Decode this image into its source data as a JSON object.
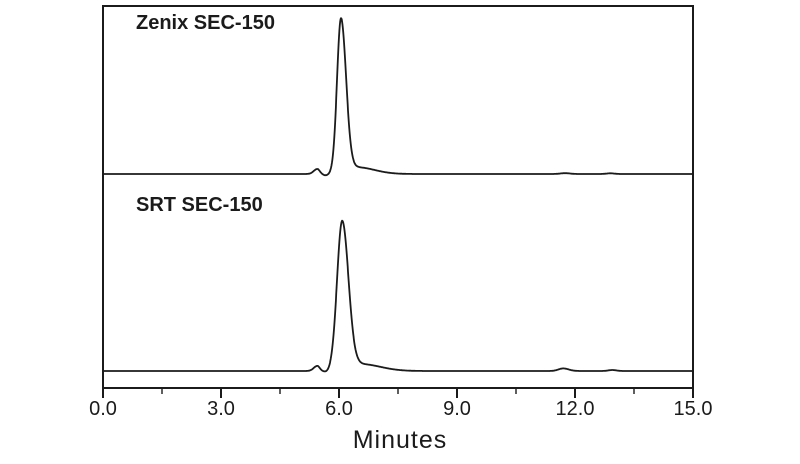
{
  "chart_data": {
    "type": "line",
    "subtype": "size-exclusion chromatography chromatograms, two stacked panels sharing one x-axis",
    "title": "",
    "xlabel": "Minutes",
    "ylabel": "",
    "y_axis": "detector response (unlabeled, relative units per panel)",
    "x_range": [
      0.0,
      15.0
    ],
    "x_major_ticks": [
      0.0,
      3.0,
      6.0,
      9.0,
      12.0,
      15.0
    ],
    "x_tick_labels": [
      "0.0",
      "3.0",
      "6.0",
      "9.0",
      "12.0",
      "15.0"
    ],
    "x_minor_ticks": [
      1.5,
      4.5,
      7.5,
      10.5,
      13.5
    ],
    "grid": "off",
    "legend": "none (panel labels inside plot area)",
    "line_color": "#1b1b1b",
    "background": "#ffffff",
    "panels": [
      {
        "label": "Zenix SEC-150",
        "main_peak_retention_min": 6.05,
        "main_peak_relative_height": 0.92,
        "pre_peak_retention_min": 5.45,
        "peaks": [
          {
            "name": "pre-peak",
            "center": 5.45,
            "height": 0.03,
            "sigma_left": 0.09,
            "sigma_right": 0.06
          },
          {
            "name": "pre-dip",
            "center": 5.66,
            "height": -0.008,
            "sigma_left": 0.06,
            "sigma_right": 0.07
          },
          {
            "name": "main-peak",
            "center": 6.05,
            "height": 0.92,
            "sigma_left": 0.1,
            "sigma_right": 0.13
          },
          {
            "name": "tail",
            "center": 6.45,
            "height": 0.04,
            "sigma_left": 0.22,
            "sigma_right": 0.45
          },
          {
            "name": "late-ripple-1",
            "center": 11.75,
            "height": 0.005,
            "sigma_left": 0.12,
            "sigma_right": 0.12
          },
          {
            "name": "late-ripple-2",
            "center": 12.9,
            "height": 0.004,
            "sigma_left": 0.1,
            "sigma_right": 0.1
          }
        ],
        "key_points": [
          [
            0.0,
            0.0
          ],
          [
            5.2,
            0.002
          ],
          [
            5.45,
            0.03
          ],
          [
            5.66,
            -0.006
          ],
          [
            6.05,
            0.92
          ],
          [
            6.45,
            0.05
          ],
          [
            7.0,
            0.01
          ],
          [
            9.0,
            0.001
          ],
          [
            11.75,
            0.005
          ],
          [
            15.0,
            0.001
          ]
        ]
      },
      {
        "label": "SRT SEC-150",
        "main_peak_retention_min": 6.08,
        "main_peak_relative_height": 0.76,
        "pre_peak_retention_min": 5.45,
        "peaks": [
          {
            "name": "pre-peak",
            "center": 5.45,
            "height": 0.026,
            "sigma_left": 0.09,
            "sigma_right": 0.06
          },
          {
            "name": "pre-dip",
            "center": 5.68,
            "height": -0.006,
            "sigma_left": 0.06,
            "sigma_right": 0.07
          },
          {
            "name": "main-peak",
            "center": 6.08,
            "height": 0.757,
            "sigma_left": 0.13,
            "sigma_right": 0.16
          },
          {
            "name": "tail",
            "center": 6.55,
            "height": 0.035,
            "sigma_left": 0.25,
            "sigma_right": 0.5
          },
          {
            "name": "late-bump-1",
            "center": 11.7,
            "height": 0.013,
            "sigma_left": 0.12,
            "sigma_right": 0.14
          },
          {
            "name": "late-bump-2",
            "center": 12.95,
            "height": 0.005,
            "sigma_left": 0.1,
            "sigma_right": 0.1
          }
        ],
        "key_points": [
          [
            0.0,
            0.0
          ],
          [
            5.2,
            0.002
          ],
          [
            5.45,
            0.026
          ],
          [
            5.68,
            -0.005
          ],
          [
            6.08,
            0.757
          ],
          [
            6.55,
            0.04
          ],
          [
            7.2,
            0.008
          ],
          [
            9.0,
            0.001
          ],
          [
            11.7,
            0.013
          ],
          [
            12.95,
            0.005
          ],
          [
            15.0,
            0.001
          ]
        ]
      }
    ]
  }
}
